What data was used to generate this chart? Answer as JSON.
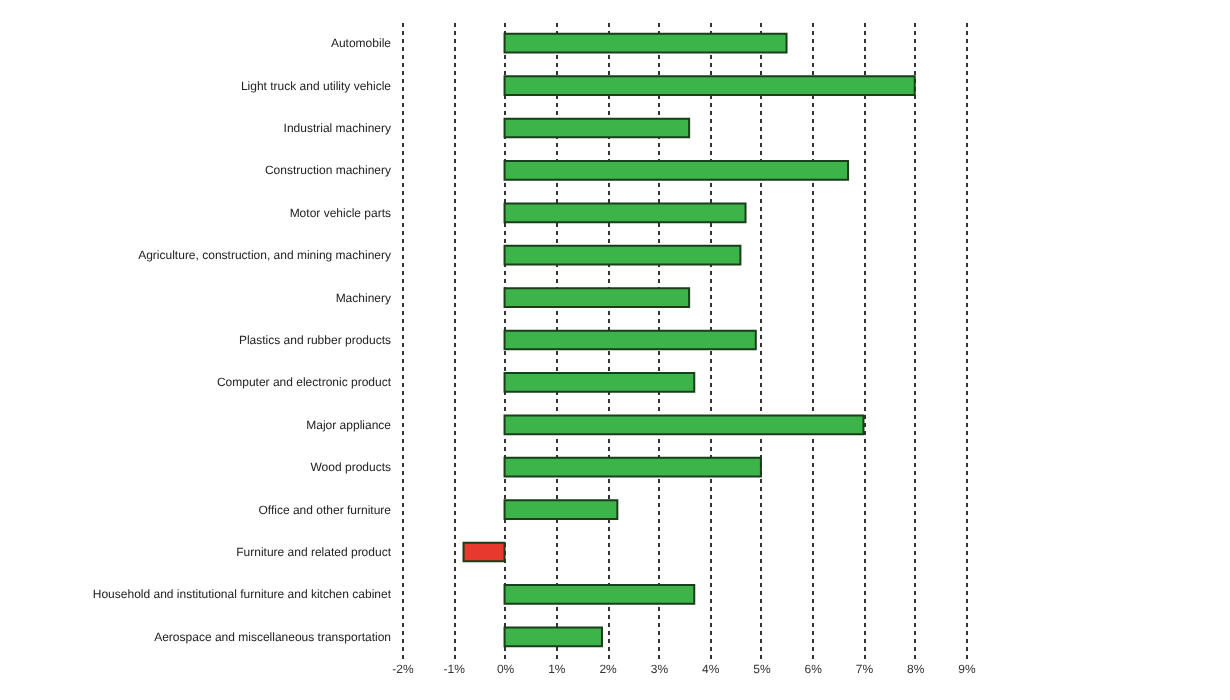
{
  "chart_data": {
    "type": "bar",
    "orientation": "horizontal",
    "categories": [
      "Automobile",
      "Light truck and utility vehicle",
      "Industrial machinery",
      "Construction machinery",
      "Motor vehicle parts",
      "Agriculture, construction, and mining machinery",
      "Machinery",
      "Plastics and rubber products",
      "Computer and electronic product",
      "Major appliance",
      "Wood products",
      "Office and other furniture",
      "Furniture and related product",
      "Household and institutional furniture and kitchen cabinet",
      "Aerospace and miscellaneous transportation"
    ],
    "values": [
      5.5,
      8.0,
      3.6,
      6.7,
      4.7,
      4.6,
      3.6,
      4.9,
      3.7,
      7.0,
      5.0,
      2.2,
      -0.8,
      3.7,
      1.9
    ],
    "colors": [
      "#3cb44a",
      "#3cb44a",
      "#3cb44a",
      "#3cb44a",
      "#3cb44a",
      "#3cb44a",
      "#3cb44a",
      "#3cb44a",
      "#3cb44a",
      "#3cb44a",
      "#3cb44a",
      "#3cb44a",
      "#e8392e",
      "#3cb44a",
      "#3cb44a"
    ],
    "xlim": [
      -2,
      9
    ],
    "xticks": [
      {
        "value": -2,
        "label": "-2%"
      },
      {
        "value": -1,
        "label": "-1%"
      },
      {
        "value": 0,
        "label": "0%"
      },
      {
        "value": 1,
        "label": "1%"
      },
      {
        "value": 2,
        "label": "2%"
      },
      {
        "value": 3,
        "label": "3%"
      },
      {
        "value": 4,
        "label": "4%"
      },
      {
        "value": 5,
        "label": "5%"
      },
      {
        "value": 6,
        "label": "6%"
      },
      {
        "value": 7,
        "label": "7%"
      },
      {
        "value": 8,
        "label": "8%"
      },
      {
        "value": 9,
        "label": "9%"
      }
    ],
    "grid": "x"
  }
}
